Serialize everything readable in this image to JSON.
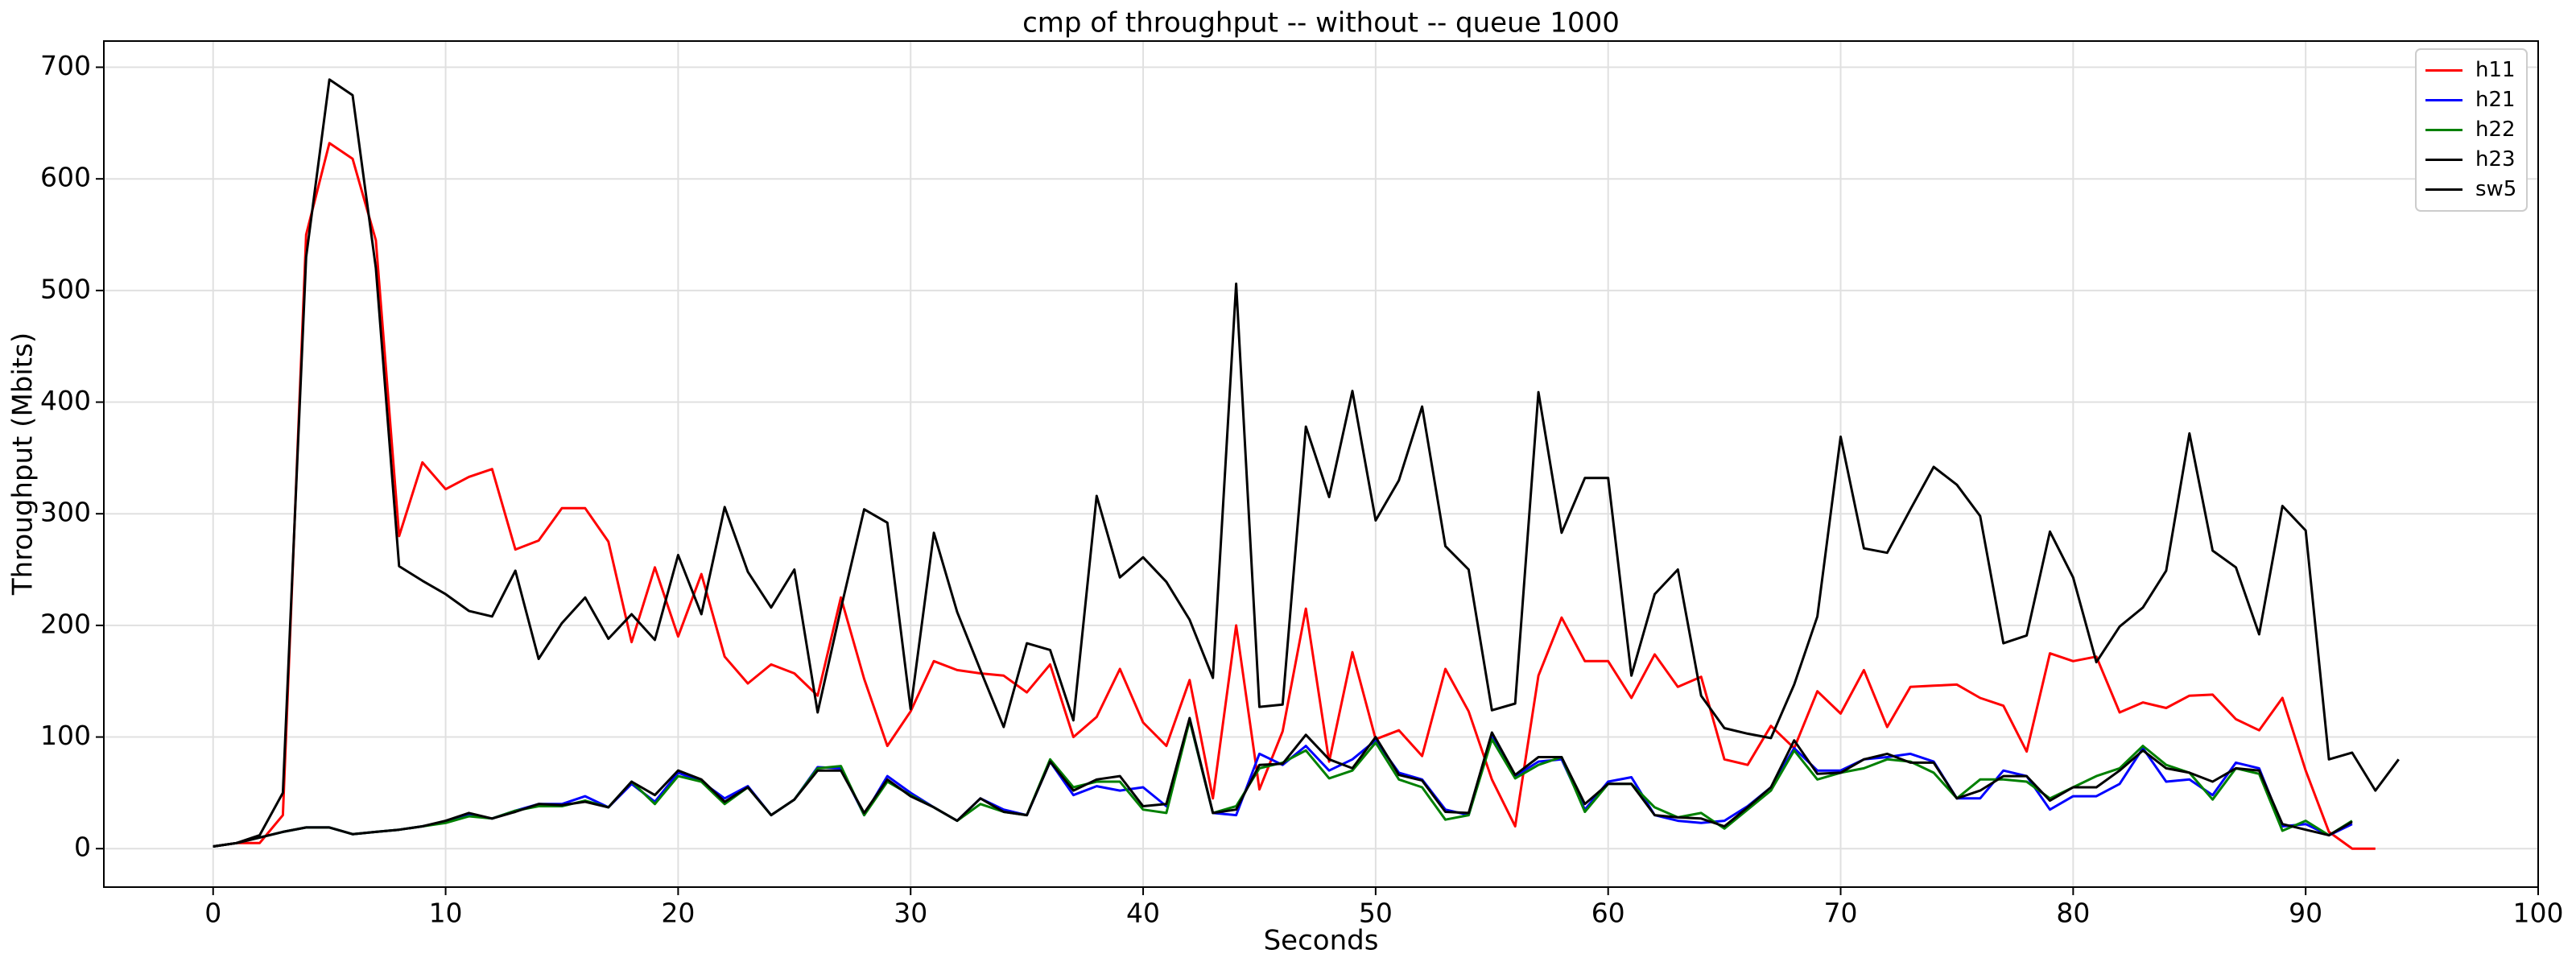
{
  "chart_data": {
    "type": "line",
    "title": "cmp of throughput -- without -- queue 1000",
    "x_label": "Seconds",
    "y_label": "Throughput (Mbits)",
    "x": [
      0,
      1,
      2,
      3,
      4,
      5,
      6,
      7,
      8,
      9,
      10,
      11,
      12,
      13,
      14,
      15,
      16,
      17,
      18,
      19,
      20,
      21,
      22,
      23,
      24,
      25,
      26,
      27,
      28,
      29,
      30,
      31,
      32,
      33,
      34,
      35,
      36,
      37,
      38,
      39,
      40,
      41,
      42,
      43,
      44,
      45,
      46,
      47,
      48,
      49,
      50,
      51,
      52,
      53,
      54,
      55,
      56,
      57,
      58,
      59,
      60,
      61,
      62,
      63,
      64,
      65,
      66,
      67,
      68,
      69,
      70,
      71,
      72,
      73,
      74,
      75,
      76,
      77,
      78,
      79,
      80,
      81,
      82,
      83,
      84,
      85,
      86,
      87,
      88,
      89,
      90,
      91,
      92,
      93,
      94
    ],
    "series": [
      {
        "name": "h11",
        "color": "#ff0000",
        "values": [
          2,
          5,
          5,
          30,
          550,
          632,
          618,
          545,
          280,
          346,
          322,
          333,
          340,
          268,
          276,
          305,
          305,
          275,
          185,
          252,
          190,
          246,
          172,
          148,
          165,
          157,
          137,
          225,
          152,
          92,
          123,
          168,
          160,
          157,
          155,
          140,
          165,
          100,
          118,
          161,
          113,
          92,
          151,
          45,
          200,
          53,
          105,
          215,
          78,
          176,
          98,
          106,
          83,
          161,
          123,
          62,
          20,
          155,
          207,
          168,
          168,
          135,
          174,
          145,
          154,
          80,
          75,
          110,
          90,
          141,
          121,
          160,
          109,
          145,
          146,
          147,
          135,
          128,
          87,
          175,
          168,
          172,
          122,
          131,
          126,
          137,
          138,
          116,
          106,
          135,
          70,
          15,
          0,
          0,
          null
        ]
      },
      {
        "name": "h21",
        "color": "#0000ff",
        "values": [
          2,
          5,
          10,
          15,
          19,
          19,
          13,
          15,
          17,
          20,
          24,
          30,
          27,
          34,
          40,
          40,
          47,
          37,
          58,
          42,
          68,
          60,
          45,
          56,
          30,
          44,
          73,
          72,
          30,
          65,
          50,
          37,
          25,
          45,
          35,
          30,
          78,
          48,
          56,
          52,
          55,
          38,
          115,
          32,
          30,
          85,
          75,
          92,
          70,
          80,
          97,
          68,
          62,
          35,
          30,
          100,
          65,
          78,
          80,
          35,
          60,
          64,
          30,
          25,
          23,
          25,
          38,
          55,
          90,
          70,
          70,
          80,
          82,
          85,
          78,
          45,
          45,
          70,
          65,
          35,
          47,
          47,
          58,
          90,
          60,
          62,
          48,
          77,
          72,
          20,
          22,
          12,
          22,
          null,
          null
        ]
      },
      {
        "name": "h22",
        "color": "#008000",
        "values": [
          2,
          5,
          10,
          15,
          19,
          19,
          13,
          15,
          17,
          20,
          23,
          29,
          27,
          34,
          38,
          38,
          43,
          37,
          60,
          40,
          65,
          60,
          40,
          55,
          30,
          44,
          72,
          74,
          30,
          60,
          48,
          37,
          25,
          40,
          33,
          30,
          80,
          55,
          60,
          60,
          35,
          32,
          115,
          32,
          38,
          72,
          77,
          88,
          63,
          70,
          95,
          62,
          55,
          26,
          30,
          98,
          63,
          75,
          82,
          33,
          58,
          58,
          37,
          28,
          32,
          18,
          35,
          52,
          88,
          62,
          68,
          72,
          80,
          78,
          68,
          45,
          62,
          62,
          60,
          45,
          55,
          65,
          72,
          92,
          75,
          68,
          44,
          72,
          67,
          16,
          25,
          12,
          25,
          null,
          null
        ]
      },
      {
        "name": "h23",
        "color": "#000000",
        "values": [
          2,
          5,
          10,
          15,
          19,
          19,
          13,
          15,
          17,
          20,
          25,
          32,
          27,
          33,
          40,
          39,
          42,
          37,
          60,
          48,
          70,
          62,
          42,
          55,
          30,
          44,
          70,
          70,
          32,
          62,
          47,
          37,
          25,
          45,
          33,
          30,
          78,
          52,
          62,
          65,
          38,
          40,
          117,
          32,
          35,
          75,
          76,
          102,
          80,
          72,
          100,
          66,
          61,
          33,
          32,
          104,
          66,
          82,
          82,
          40,
          58,
          58,
          30,
          28,
          27,
          20,
          37,
          55,
          97,
          67,
          68,
          80,
          85,
          77,
          77,
          45,
          52,
          65,
          65,
          43,
          55,
          55,
          70,
          88,
          72,
          68,
          60,
          72,
          70,
          22,
          17,
          12,
          24,
          null,
          null
        ]
      },
      {
        "name": "sw5",
        "color": "#000000",
        "values": [
          2,
          5,
          12,
          50,
          530,
          689,
          675,
          520,
          253,
          240,
          228,
          213,
          208,
          249,
          170,
          202,
          225,
          188,
          210,
          187,
          263,
          210,
          306,
          248,
          216,
          250,
          122,
          215,
          304,
          292,
          125,
          283,
          212,
          160,
          109,
          184,
          178,
          115,
          316,
          243,
          261,
          239,
          205,
          153,
          506,
          127,
          129,
          378,
          315,
          410,
          294,
          330,
          396,
          271,
          250,
          124,
          130,
          409,
          283,
          332,
          332,
          155,
          228,
          250,
          137,
          108,
          103,
          99,
          147,
          208,
          369,
          269,
          265,
          304,
          342,
          326,
          298,
          184,
          191,
          284,
          243,
          167,
          199,
          216,
          249,
          372,
          267,
          252,
          192,
          307,
          285,
          80,
          86,
          52,
          80
        ]
      }
    ],
    "xlim": [
      -4.7,
      100
    ],
    "ylim": [
      -34.45,
      723.45
    ],
    "xticks": [
      0,
      10,
      20,
      30,
      40,
      50,
      60,
      70,
      80,
      90,
      100
    ],
    "yticks": [
      0,
      100,
      200,
      300,
      400,
      500,
      600,
      700
    ],
    "grid": true,
    "legend": "upper right"
  }
}
